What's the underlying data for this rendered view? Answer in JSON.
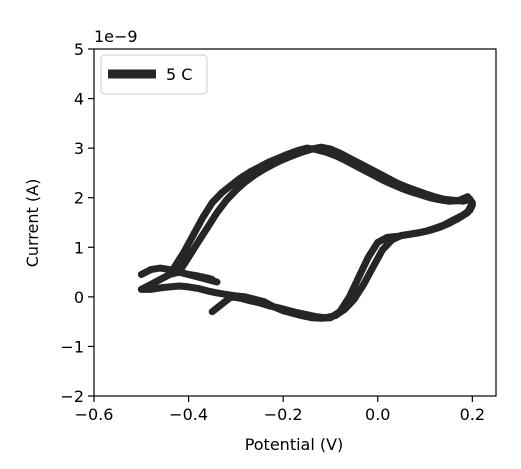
{
  "chart_data": {
    "type": "line",
    "title": "",
    "xlabel": "Potential (V)",
    "ylabel": "Current (A)",
    "y_scale_label": "1e−9",
    "xlim": [
      -0.6,
      0.25
    ],
    "ylim": [
      -2,
      5
    ],
    "x_ticks": [
      -0.6,
      -0.4,
      -0.2,
      0.0,
      0.2
    ],
    "x_tick_labels": [
      "−0.6",
      "−0.4",
      "−0.2",
      "0.0",
      "0.2"
    ],
    "y_ticks": [
      -2,
      -1,
      0,
      1,
      2,
      3,
      4,
      5
    ],
    "y_tick_labels": [
      "−2",
      "−1",
      "0",
      "1",
      "2",
      "3",
      "4",
      "5"
    ],
    "grid": false,
    "legend_position": "top-left",
    "series": [
      {
        "name": "5 C",
        "color": "#262626",
        "cycles": [
          {
            "x": [
              -0.42,
              -0.4,
              -0.38,
              -0.36,
              -0.34,
              -0.32,
              -0.3,
              -0.28,
              -0.26,
              -0.24,
              -0.22,
              -0.2,
              -0.18,
              -0.16,
              -0.14,
              -0.12,
              -0.1,
              -0.08,
              -0.06,
              -0.04,
              -0.02,
              0.0,
              0.02,
              0.04,
              0.06,
              0.08,
              0.1,
              0.12,
              0.14,
              0.16,
              0.18,
              0.195,
              0.2,
              0.195,
              0.18,
              0.16,
              0.14,
              0.12,
              0.1,
              0.08,
              0.06,
              0.04,
              0.02,
              0.0,
              -0.02,
              -0.04,
              -0.06,
              -0.08,
              -0.1,
              -0.12,
              -0.14,
              -0.16,
              -0.18,
              -0.2,
              -0.22,
              -0.24,
              -0.26,
              -0.28,
              -0.3,
              -0.32,
              -0.34,
              -0.36,
              -0.38,
              -0.4,
              -0.42,
              -0.44,
              -0.46,
              -0.48,
              -0.5,
              -0.48,
              -0.46,
              -0.44,
              -0.42,
              -0.4,
              -0.38,
              -0.36,
              -0.34
            ],
            "y": [
              0.5,
              0.8,
              1.1,
              1.4,
              1.7,
              1.95,
              2.15,
              2.32,
              2.46,
              2.58,
              2.68,
              2.77,
              2.85,
              2.92,
              2.98,
              3.02,
              2.98,
              2.9,
              2.8,
              2.7,
              2.6,
              2.5,
              2.4,
              2.3,
              2.22,
              2.15,
              2.08,
              2.02,
              1.97,
              1.95,
              1.93,
              1.97,
              1.85,
              1.75,
              1.65,
              1.55,
              1.45,
              1.38,
              1.32,
              1.28,
              1.25,
              1.22,
              1.2,
              1.1,
              0.8,
              0.4,
              0.0,
              -0.3,
              -0.42,
              -0.43,
              -0.42,
              -0.38,
              -0.33,
              -0.28,
              -0.2,
              -0.1,
              -0.05,
              0.0,
              0.02,
              0.05,
              0.08,
              0.12,
              0.17,
              0.2,
              0.22,
              0.2,
              0.18,
              0.15,
              0.15,
              0.25,
              0.35,
              0.45,
              0.5,
              0.45,
              0.4,
              0.35,
              0.3
            ]
          },
          {
            "x": [
              -0.43,
              -0.41,
              -0.39,
              -0.37,
              -0.35,
              -0.33,
              -0.31,
              -0.29,
              -0.27,
              -0.25,
              -0.23,
              -0.21,
              -0.19,
              -0.17,
              -0.15,
              -0.13,
              -0.11,
              -0.09,
              -0.07,
              -0.05,
              -0.03,
              -0.01,
              0.01,
              0.03,
              0.05,
              0.07,
              0.09,
              0.11,
              0.13,
              0.15,
              0.17,
              0.19,
              0.2,
              0.19,
              0.17,
              0.15,
              0.13,
              0.11,
              0.09,
              0.07,
              0.05,
              0.03,
              0.01,
              -0.01,
              -0.03,
              -0.05,
              -0.07,
              -0.09,
              -0.11,
              -0.13,
              -0.15,
              -0.17,
              -0.19,
              -0.21,
              -0.23,
              -0.25,
              -0.27,
              -0.29,
              -0.31,
              -0.33,
              -0.35
            ],
            "y": [
              0.6,
              0.9,
              1.25,
              1.6,
              1.9,
              2.1,
              2.25,
              2.4,
              2.52,
              2.62,
              2.72,
              2.8,
              2.88,
              2.95,
              3.0,
              2.97,
              2.92,
              2.85,
              2.76,
              2.66,
              2.56,
              2.46,
              2.36,
              2.27,
              2.19,
              2.12,
              2.06,
              2.0,
              1.96,
              1.93,
              1.94,
              2.02,
              1.9,
              1.7,
              1.58,
              1.48,
              1.4,
              1.34,
              1.3,
              1.27,
              1.24,
              1.15,
              0.95,
              0.6,
              0.25,
              -0.05,
              -0.25,
              -0.38,
              -0.42,
              -0.4,
              -0.36,
              -0.32,
              -0.27,
              -0.22,
              -0.18,
              -0.12,
              -0.08,
              -0.03,
              0.0,
              -0.15,
              -0.3
            ]
          },
          {
            "x": [
              -0.5,
              -0.48,
              -0.46,
              -0.44,
              -0.42,
              -0.4,
              -0.38,
              -0.36,
              -0.35
            ],
            "y": [
              0.45,
              0.55,
              0.58,
              0.55,
              0.5,
              0.45,
              0.42,
              0.38,
              0.35
            ]
          }
        ]
      }
    ]
  }
}
